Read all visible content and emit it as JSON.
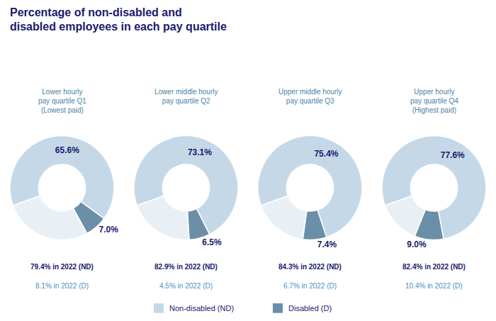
{
  "chart_data": {
    "type": "pie",
    "title": "Percentage of non-disabled and\ndisabled employees in each pay quartile",
    "categories": [
      "Non-disabled (ND)",
      "Disabled (D)",
      null
    ],
    "colors": [
      "#c5d8e8",
      "#6b8fa8",
      "#e8f0f5"
    ],
    "legend": "bottom",
    "series": [
      {
        "name": "Lower hourly\npay quartile Q1\n(Lowest paid)",
        "values": [
          65.6,
          7.0,
          27.4
        ],
        "value_labels": [
          "65.6%",
          "7.0%",
          null
        ],
        "annotations": [
          "79.4% in 2022 (ND)",
          "8.1% in 2022 (D)"
        ]
      },
      {
        "name": "Lower middle hourly\npay quartile Q2",
        "values": [
          73.1,
          6.5,
          20.4
        ],
        "value_labels": [
          "73.1%",
          "6.5%",
          null
        ],
        "annotations": [
          "82.9% in 2022 (ND)",
          "4.5% in 2022 (D)"
        ]
      },
      {
        "name": "Upper middle hourly\npay quartile Q3",
        "values": [
          75.4,
          7.4,
          17.2
        ],
        "value_labels": [
          "75.4%",
          "7.4%",
          null
        ],
        "annotations": [
          "84.3% in 2022 (ND)",
          "6.7% in 2022 (D)"
        ]
      },
      {
        "name": "Upper hourly\npay quartile Q4\n(Highest paid)",
        "values": [
          77.6,
          9.0,
          13.4
        ],
        "value_labels": [
          "77.6%",
          "9.0%",
          null
        ],
        "annotations": [
          "82.4% in 2022 (ND)",
          "10.4% in 2022 (D)"
        ]
      }
    ]
  }
}
